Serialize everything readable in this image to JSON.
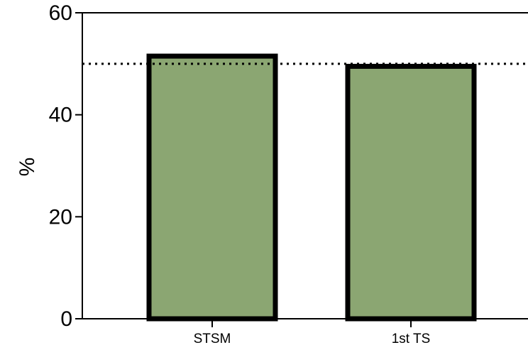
{
  "chart_data": {
    "type": "bar",
    "categories": [
      "STSM",
      "1st TS"
    ],
    "values": [
      51.5,
      49.5
    ],
    "ylabel": "%",
    "xlabel": "",
    "ylim": [
      0,
      60
    ],
    "yticks": [
      "0",
      "20",
      "40",
      "60"
    ],
    "reference_line": 50,
    "grid": false,
    "colors": {
      "bar_fill": "#8ba672",
      "bar_stroke": "#000000",
      "reference_line": "#000000"
    }
  }
}
